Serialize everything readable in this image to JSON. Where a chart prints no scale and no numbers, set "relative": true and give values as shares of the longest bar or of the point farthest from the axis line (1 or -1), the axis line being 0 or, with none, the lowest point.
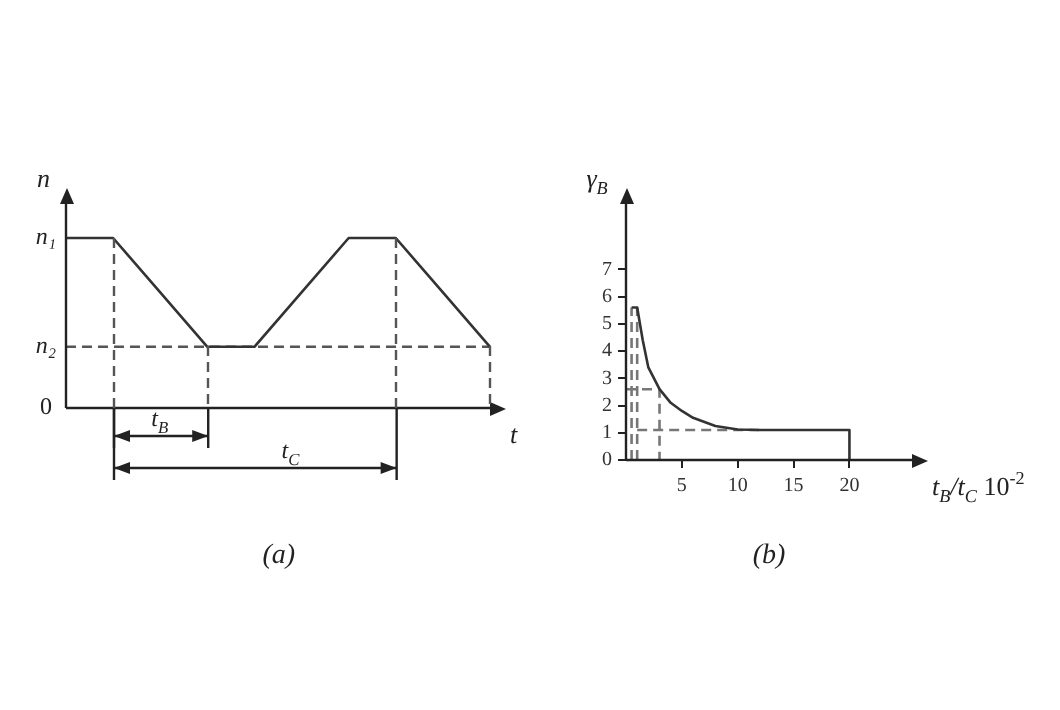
{
  "chart_data": [
    {
      "type": "line",
      "relative": true,
      "xlabel": "t",
      "ylabel": "n",
      "title": "(a)",
      "marker": "none",
      "categories": [
        null,
        null,
        null,
        null,
        null,
        null,
        null,
        null,
        null,
        null
      ],
      "series": [
        {
          "color": "#333333",
          "values": [
            1,
            1,
            0.68,
            0.36,
            0.36,
            0.68,
            1,
            1,
            0.68,
            0.36
          ]
        }
      ],
      "ref_lines": [
        {
          "axis": "y",
          "value": 0.36,
          "label": "n₂",
          "color": "#555555",
          "line_style": "dashed"
        }
      ],
      "annotations": [
        "n₁",
        "0",
        "t$_{B}$",
        "t$_{C}$"
      ]
    },
    {
      "type": "line",
      "xlabel": "t$_{B}$/t$_{C}$ 10$^{-2}$",
      "ylabel": "γ$_{B}$",
      "title": "(b)",
      "marker": "none",
      "xlim": [
        0,
        25.6
      ],
      "xticks": [
        5,
        10,
        15,
        20
      ],
      "ylim": [
        0,
        9.4
      ],
      "yticks": [
        0,
        1,
        2,
        3,
        4,
        5,
        6,
        7
      ],
      "series": [
        {
          "color": "#333333",
          "x": [
            0.5,
            1,
            1.5,
            2,
            3,
            4,
            5,
            6,
            8,
            10,
            12,
            20,
            20
          ],
          "values": [
            5.6,
            5.6,
            4.4,
            3.4,
            2.6,
            2.1,
            1.8,
            1.55,
            1.25,
            1.12,
            1.1,
            1.1,
            0
          ]
        },
        {
          "color": "#777777",
          "line_style": "dashed",
          "x": [
            1,
            1,
            null,
            0.5,
            0.5,
            null,
            0,
            3,
            3,
            null,
            1,
            12
          ],
          "values": [
            0,
            5.6,
            null,
            0,
            5.6,
            null,
            2.6,
            2.6,
            0,
            null,
            1.1,
            1.1
          ]
        }
      ]
    }
  ]
}
